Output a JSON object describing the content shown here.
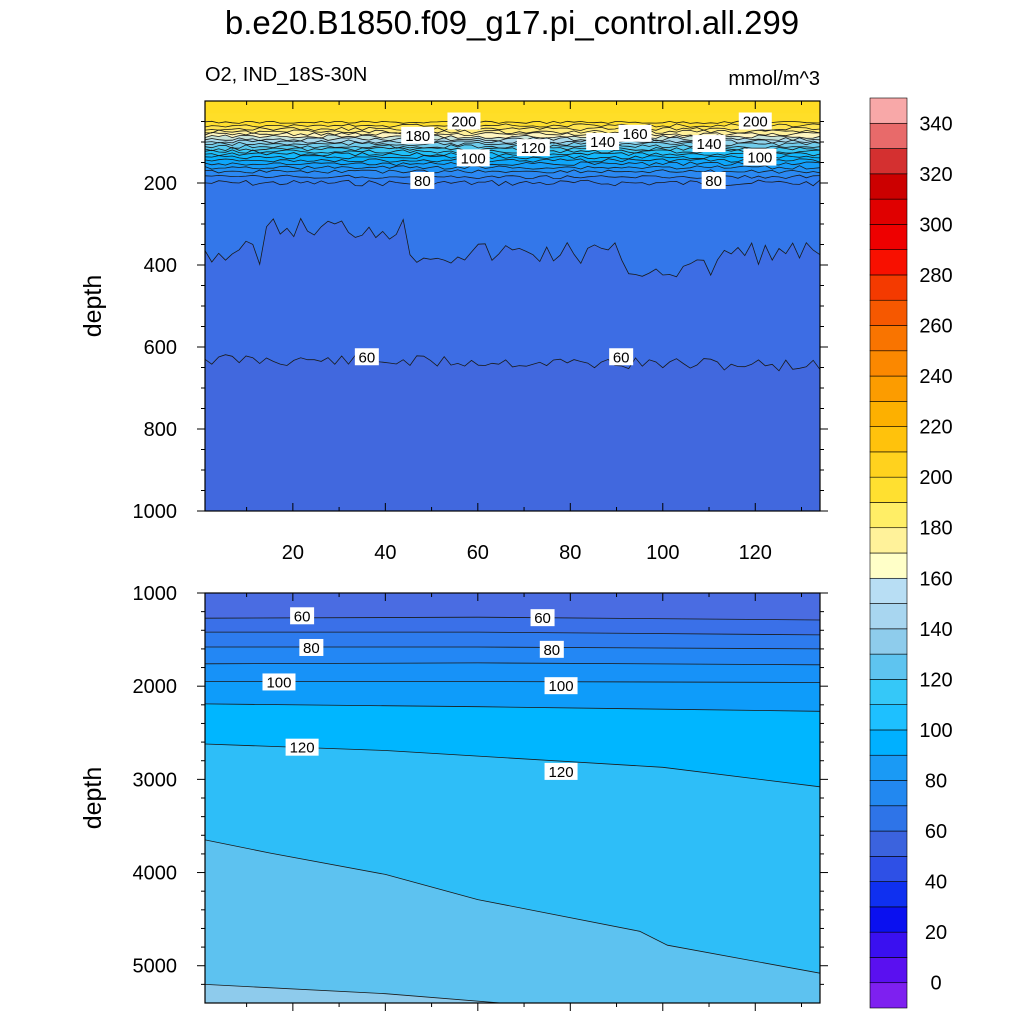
{
  "title": "b.e20.B1850.f09_g17.pi_control.all.299",
  "variable_region": "O2, IND_18S-30N",
  "units": "mmol/m^3",
  "colorbar": {
    "tick_labels": [
      "0",
      "20",
      "40",
      "60",
      "80",
      "100",
      "120",
      "140",
      "160",
      "180",
      "200",
      "220",
      "240",
      "260",
      "280",
      "300",
      "320",
      "340"
    ],
    "levels": [
      0,
      20,
      40,
      60,
      80,
      100,
      120,
      140,
      160,
      180,
      200,
      220,
      240,
      260,
      280,
      300,
      320,
      340
    ],
    "colors": [
      "#7E20F0",
      "#5A10F0",
      "#3A10F0",
      "#0A10F0",
      "#0F30F0",
      "#2E50E6",
      "#3B63DE",
      "#2E74E8",
      "#2288F0",
      "#1A9AF5",
      "#00B0FF",
      "#1EC0FF",
      "#35C8F8",
      "#5EC4F0",
      "#8ECCEC",
      "#A8D6F0",
      "#B8DEF4",
      "#FFFFC8",
      "#FFF29A",
      "#FFEE66",
      "#FFE030",
      "#FFD21E",
      "#FFC20C",
      "#FDB000",
      "#FC9C00",
      "#FB8800",
      "#F97400",
      "#F65800",
      "#F43A00",
      "#F81000",
      "#EE0000",
      "#E00000",
      "#CC0000",
      "#D43030",
      "#E86A6A",
      "#F8A8A8"
    ]
  },
  "chart_data": [
    {
      "type": "contour",
      "panel": "upper",
      "ylabel": "depth",
      "xlim": [
        1,
        134
      ],
      "ylim": [
        1000,
        0
      ],
      "x_ticks": [
        20,
        40,
        60,
        80,
        100,
        120
      ],
      "y_ticks": [
        200,
        400,
        600,
        800,
        1000
      ],
      "bands": [
        {
          "from_depth": 0,
          "to_depth": 55,
          "value": 200
        },
        {
          "from_depth": 55,
          "to_depth": 80,
          "value": 180
        },
        {
          "from_depth": 80,
          "to_depth": 100,
          "value": 160
        },
        {
          "from_depth": 100,
          "to_depth": 120,
          "value": 140
        },
        {
          "from_depth": 120,
          "to_depth": 140,
          "value": 120
        },
        {
          "from_depth": 140,
          "to_depth": 170,
          "value": 100
        },
        {
          "from_depth": 170,
          "to_depth": 195,
          "value": 80
        },
        {
          "from_depth": 195,
          "to_depth": 400,
          "value": 70
        },
        {
          "from_depth": 400,
          "to_depth": 630,
          "value": 60
        },
        {
          "from_depth": 630,
          "to_depth": 1000,
          "value": 50
        }
      ],
      "contour_labels": [
        {
          "x": 57,
          "depth": 50,
          "text": "200"
        },
        {
          "x": 120,
          "depth": 50,
          "text": "200"
        },
        {
          "x": 47,
          "depth": 85,
          "text": "180"
        },
        {
          "x": 94,
          "depth": 80,
          "text": "160"
        },
        {
          "x": 87,
          "depth": 100,
          "text": "140"
        },
        {
          "x": 110,
          "depth": 105,
          "text": "140"
        },
        {
          "x": 72,
          "depth": 115,
          "text": "120"
        },
        {
          "x": 59,
          "depth": 140,
          "text": "100"
        },
        {
          "x": 121,
          "depth": 138,
          "text": "100"
        },
        {
          "x": 48,
          "depth": 195,
          "text": "80"
        },
        {
          "x": 111,
          "depth": 195,
          "text": "80"
        },
        {
          "x": 36,
          "depth": 625,
          "text": "60"
        },
        {
          "x": 91,
          "depth": 625,
          "text": "60"
        }
      ]
    },
    {
      "type": "contour",
      "panel": "lower",
      "ylabel": "depth",
      "xlim": [
        1,
        134
      ],
      "ylim": [
        5400,
        1000
      ],
      "y_ticks": [
        1000,
        2000,
        3000,
        4000,
        5000
      ],
      "contour_labels": [
        {
          "x": 22,
          "depth": 1250,
          "text": "60"
        },
        {
          "x": 74,
          "depth": 1270,
          "text": "60"
        },
        {
          "x": 24,
          "depth": 1590,
          "text": "80"
        },
        {
          "x": 76,
          "depth": 1610,
          "text": "80"
        },
        {
          "x": 17,
          "depth": 1960,
          "text": "100"
        },
        {
          "x": 78,
          "depth": 2000,
          "text": "100"
        },
        {
          "x": 22,
          "depth": 2660,
          "text": "120"
        },
        {
          "x": 78,
          "depth": 2920,
          "text": "120"
        }
      ]
    }
  ]
}
